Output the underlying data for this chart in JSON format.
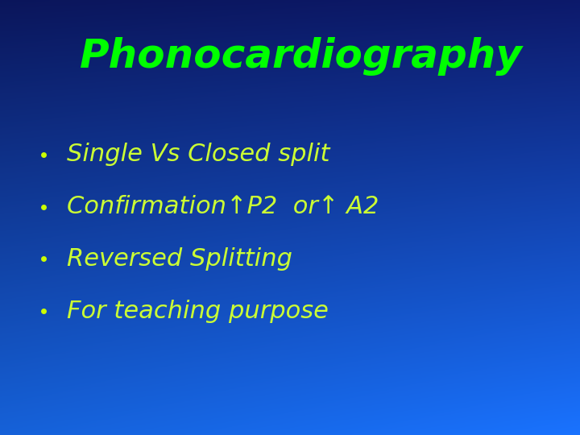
{
  "title": "Phonocardiography",
  "title_color": "#00ff00",
  "title_fontsize": 36,
  "bullet_color": "#ccff00",
  "bullet_items": [
    "Single Vs Closed split",
    "Confirmation↑P2  or↑ A2",
    "Reversed Splitting",
    "For teaching purpose"
  ],
  "bullet_text_color": "#ccff33",
  "bullet_fontsize": 22,
  "bg_colors": [
    "#0d1b6e",
    "#0033cc",
    "#0055ee",
    "#0077ff"
  ],
  "fig_width": 7.2,
  "fig_height": 5.4,
  "dpi": 100
}
